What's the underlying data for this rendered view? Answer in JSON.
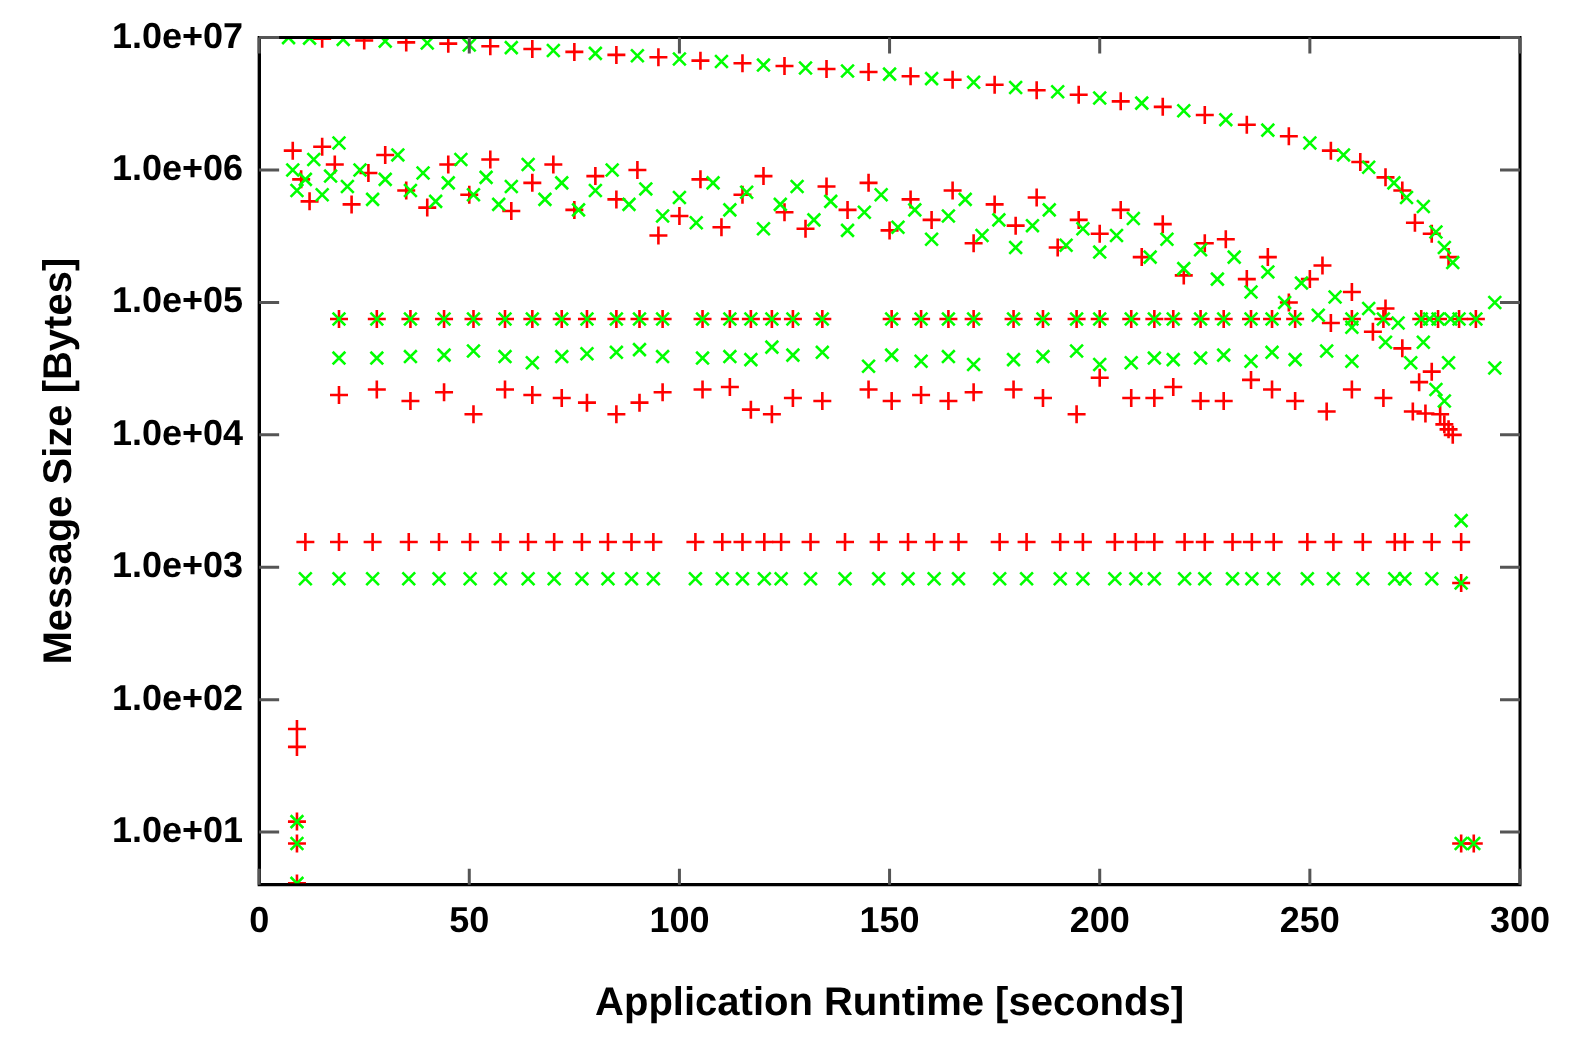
{
  "chart_data": {
    "type": "scatter",
    "xlabel": "Application Runtime [seconds]",
    "ylabel": "Message Size [Bytes]",
    "log": "y",
    "grid": false,
    "xlim": [
      0,
      300
    ],
    "xticks": [
      0,
      50,
      100,
      150,
      200,
      250,
      300
    ],
    "ylim": [
      4,
      10000000
    ],
    "yticks": [
      {
        "value": 10,
        "label": "1.0e+01"
      },
      {
        "value": 100,
        "label": "1.0e+02"
      },
      {
        "value": 1000,
        "label": "1.0e+03"
      },
      {
        "value": 10000,
        "label": "1.0e+04"
      },
      {
        "value": 100000,
        "label": "1.0e+05"
      },
      {
        "value": 1000000,
        "label": "1.0e+06"
      },
      {
        "value": 10000000,
        "label": "1.0e+07"
      }
    ],
    "series": [
      {
        "color": "#ff0000",
        "marker": "cross",
        "x": [
          15,
          25,
          35,
          45,
          55,
          65,
          75,
          85,
          95,
          105,
          115,
          125,
          135,
          145,
          155,
          165,
          175,
          185,
          195,
          205,
          215,
          225,
          235,
          245,
          255,
          262,
          268,
          272,
          275,
          279,
          283
        ],
        "values": [
          9800000,
          9500000,
          9200000,
          9000000,
          8600000,
          8200000,
          7800000,
          7400000,
          7100000,
          6700000,
          6400000,
          6100000,
          5800000,
          5500000,
          5100000,
          4800000,
          4400000,
          4000000,
          3700000,
          3300000,
          3000000,
          2600000,
          2200000,
          1800000,
          1400000,
          1150000,
          880000,
          700000,
          400000,
          330000,
          220000
        ]
      },
      {
        "color": "#ff0000",
        "marker": "cross",
        "x": [
          8,
          10,
          12,
          15,
          18,
          22,
          26,
          30,
          35,
          40,
          45,
          50,
          55,
          60,
          65,
          70,
          75,
          80,
          85,
          90,
          95,
          100,
          105,
          110,
          115,
          120,
          125,
          130,
          135,
          140,
          145,
          150,
          155,
          160,
          165,
          170,
          175,
          180,
          185,
          190,
          195,
          200,
          205,
          210,
          215,
          220,
          225,
          230,
          235,
          240,
          245,
          250,
          253,
          255,
          260,
          265,
          268,
          272,
          276,
          279,
          282
        ],
        "values": [
          1400000,
          850000,
          580000,
          1500000,
          1100000,
          550000,
          950000,
          1300000,
          700000,
          520000,
          1100000,
          650000,
          1200000,
          490000,
          800000,
          1100000,
          500000,
          900000,
          600000,
          1000000,
          320000,
          450000,
          850000,
          370000,
          650000,
          900000,
          480000,
          360000,
          750000,
          500000,
          800000,
          350000,
          600000,
          420000,
          700000,
          280000,
          550000,
          380000,
          620000,
          260000,
          420000,
          330000,
          500000,
          220000,
          390000,
          160000,
          280000,
          300000,
          150000,
          220000,
          100000,
          150000,
          190000,
          70000,
          120000,
          60000,
          90000,
          45000,
          25000,
          30000,
          12000
        ]
      },
      {
        "color": "#ff0000",
        "marker": "cross",
        "x": [
          19,
          28,
          36,
          44,
          51,
          58.5,
          65,
          72,
          78,
          85,
          90.5,
          96,
          105.5,
          112,
          117,
          122,
          127,
          134,
          150.5,
          157.5,
          164,
          170,
          179.5,
          186.5,
          194.5,
          200,
          207.5,
          213,
          217.5,
          224,
          229.5,
          236,
          241,
          246.5,
          260,
          267.5,
          276.5,
          280.5,
          285.5,
          289.5
        ],
        "values": [
          75000,
          75000,
          75000,
          75000,
          75000,
          75000,
          75000,
          75000,
          75000,
          75000,
          75000,
          75000,
          75000,
          75000,
          75000,
          75000,
          75000,
          75000,
          75000,
          75000,
          75000,
          75000,
          75000,
          75000,
          75000,
          75000,
          75000,
          75000,
          75000,
          75000,
          75000,
          75000,
          75000,
          75000,
          75000,
          75000,
          75000,
          75000,
          75000,
          75000
        ]
      },
      {
        "color": "#ff0000",
        "marker": "cross",
        "x": [
          19,
          28,
          36,
          44,
          51,
          58.5,
          65,
          72,
          78,
          85,
          90.5,
          96,
          105.5,
          112,
          117,
          122,
          127,
          134,
          145,
          150.5,
          157.5,
          164,
          170,
          179.5,
          186.5,
          194.5,
          200,
          207.5,
          213,
          217.5,
          224,
          229.5,
          236,
          241,
          246.5,
          254,
          260,
          267.5,
          274.5,
          277.5,
          281,
          283,
          284
        ],
        "values": [
          20000,
          22000,
          18000,
          21000,
          14300,
          22000,
          20000,
          19000,
          17500,
          14300,
          17500,
          21000,
          22000,
          23000,
          15500,
          14300,
          19000,
          18000,
          22000,
          18000,
          20000,
          18000,
          21000,
          22000,
          19000,
          14300,
          27000,
          19000,
          19000,
          23000,
          18000,
          18000,
          26000,
          22000,
          18000,
          15000,
          22000,
          19000,
          15000,
          14500,
          14300,
          11000,
          10000
        ]
      },
      {
        "color": "#ff0000",
        "marker": "cross",
        "x": [
          11,
          19,
          27,
          35.6,
          42.8,
          50.2,
          57.4,
          64,
          70.2,
          76.8,
          83,
          88.6,
          93.8,
          103.8,
          110.2,
          115,
          120.2,
          124.2,
          131.2,
          139.4,
          147.4,
          154.4,
          160.6,
          166.4,
          176.2,
          182.6,
          190.6,
          196,
          203.6,
          208.6,
          213,
          220.2,
          225,
          231.6,
          236.2,
          241.4,
          249.4,
          255.6,
          262.6,
          270.2,
          272.6,
          279,
          286
        ],
        "values": [
          1550,
          1550,
          1550,
          1550,
          1550,
          1550,
          1550,
          1550,
          1550,
          1550,
          1550,
          1550,
          1550,
          1550,
          1550,
          1550,
          1550,
          1550,
          1550,
          1550,
          1550,
          1550,
          1550,
          1550,
          1550,
          1550,
          1550,
          1550,
          1550,
          1550,
          1550,
          1550,
          1550,
          1550,
          1550,
          1550,
          1550,
          1550,
          1550,
          1550,
          1550,
          1550,
          1550
        ]
      },
      {
        "color": "#ff0000",
        "marker": "cross",
        "x": [
          9,
          9,
          9,
          9,
          9,
          286,
          286,
          289
        ],
        "values": [
          60,
          44,
          12,
          8.2,
          4.1,
          760,
          8.2,
          8.2
        ]
      },
      {
        "color": "#00ff00",
        "marker": "x",
        "x": [
          7,
          12,
          20,
          30,
          40,
          50,
          60,
          70,
          80,
          90,
          100,
          110,
          120,
          130,
          140,
          150,
          160,
          170,
          180,
          190,
          200,
          210,
          220,
          230,
          240,
          250,
          258,
          264,
          270,
          273,
          277,
          280,
          282,
          284
        ],
        "values": [
          10000000,
          9900000,
          9700000,
          9400000,
          9100000,
          8800000,
          8400000,
          8000000,
          7600000,
          7300000,
          6900000,
          6600000,
          6200000,
          5900000,
          5600000,
          5300000,
          4900000,
          4600000,
          4200000,
          3900000,
          3500000,
          3200000,
          2800000,
          2400000,
          2000000,
          1600000,
          1300000,
          1050000,
          800000,
          620000,
          530000,
          340000,
          260000,
          200000
        ]
      },
      {
        "color": "#00ff00",
        "marker": "x",
        "x": [
          8,
          9,
          11,
          13,
          15,
          17,
          19,
          21,
          24,
          27,
          30,
          33,
          36,
          39,
          42,
          45,
          48,
          51,
          54,
          57,
          60,
          64,
          68,
          72,
          76,
          80,
          84,
          88,
          92,
          96,
          100,
          104,
          108,
          112,
          116,
          120,
          124,
          128,
          132,
          136,
          140,
          144,
          148,
          152,
          156,
          160,
          164,
          168,
          172,
          176,
          180,
          184,
          188,
          192,
          196,
          200,
          204,
          208,
          212,
          216,
          220,
          224,
          228,
          232,
          236,
          240,
          244,
          248,
          252,
          256,
          260,
          264,
          268,
          271,
          274,
          277,
          280,
          282,
          283
        ],
        "values": [
          1000000,
          700000,
          850000,
          1200000,
          650000,
          900000,
          1600000,
          750000,
          1000000,
          600000,
          850000,
          1300000,
          700000,
          950000,
          580000,
          800000,
          1200000,
          650000,
          880000,
          550000,
          750000,
          1100000,
          600000,
          800000,
          500000,
          700000,
          1000000,
          550000,
          720000,
          450000,
          620000,
          400000,
          800000,
          500000,
          680000,
          360000,
          550000,
          750000,
          420000,
          580000,
          350000,
          480000,
          650000,
          370000,
          500000,
          300000,
          450000,
          600000,
          320000,
          420000,
          260000,
          380000,
          500000,
          270000,
          360000,
          240000,
          320000,
          430000,
          220000,
          300000,
          180000,
          250000,
          150000,
          220000,
          120000,
          170000,
          100000,
          140000,
          80000,
          110000,
          65000,
          90000,
          50000,
          70000,
          35000,
          50000,
          22000,
          18000,
          35000
        ]
      },
      {
        "color": "#00ff00",
        "marker": "x",
        "x": [
          19,
          28,
          36,
          44,
          51,
          58.5,
          65,
          72,
          78,
          85,
          90.5,
          96,
          105.5,
          112,
          117,
          122,
          127,
          134,
          150.5,
          157.5,
          164,
          170,
          179.5,
          186.5,
          194.5,
          200,
          207.5,
          213,
          217.5,
          224,
          229.5,
          236,
          241,
          246.5,
          260,
          267.5,
          276.5,
          278.5,
          280.5,
          283.5,
          285.5,
          289.5,
          294
        ],
        "values": [
          75000,
          75000,
          75000,
          75000,
          75000,
          75000,
          75000,
          75000,
          75000,
          75000,
          75000,
          75000,
          75000,
          75000,
          75000,
          75000,
          75000,
          75000,
          75000,
          75000,
          75000,
          75000,
          75000,
          75000,
          75000,
          75000,
          75000,
          75000,
          75000,
          75000,
          75000,
          75000,
          75000,
          75000,
          75000,
          75000,
          75000,
          75000,
          75000,
          75000,
          75000,
          75000,
          100000
        ]
      },
      {
        "color": "#00ff00",
        "marker": "x",
        "x": [
          19,
          28,
          36,
          44,
          51,
          58.5,
          65,
          72,
          78,
          85,
          90.5,
          96,
          105.5,
          112,
          117,
          122,
          127,
          134,
          145,
          150.5,
          157.5,
          164,
          170,
          179.5,
          186.5,
          194.5,
          200,
          207.5,
          213,
          217.5,
          224,
          229.5,
          236,
          241,
          246.5,
          254,
          260,
          294
        ],
        "values": [
          38000,
          38000,
          39000,
          40000,
          43000,
          39000,
          35000,
          39000,
          41000,
          42000,
          44000,
          39000,
          38000,
          39000,
          37000,
          46000,
          40000,
          42000,
          33000,
          40000,
          36000,
          39000,
          34000,
          37000,
          39000,
          43000,
          34000,
          35000,
          38000,
          37000,
          38000,
          40000,
          36000,
          42000,
          37000,
          43000,
          36000,
          32000
        ]
      },
      {
        "color": "#00ff00",
        "marker": "x",
        "x": [
          11,
          19,
          27,
          35.6,
          42.8,
          50.2,
          57.4,
          64,
          70.2,
          76.8,
          83,
          88.6,
          93.8,
          103.8,
          110.2,
          115,
          120.2,
          124.2,
          131.2,
          139.4,
          147.4,
          154.4,
          160.6,
          166.4,
          176.2,
          182.6,
          190.6,
          196,
          203.6,
          208.6,
          213,
          220.2,
          225,
          231.6,
          236.2,
          241.4,
          249.4,
          255.6,
          262.6,
          270.2,
          272.6,
          279,
          286
        ],
        "values": [
          820,
          820,
          820,
          820,
          820,
          820,
          820,
          820,
          820,
          820,
          820,
          820,
          820,
          820,
          820,
          820,
          820,
          820,
          820,
          820,
          820,
          820,
          820,
          820,
          820,
          820,
          820,
          820,
          820,
          820,
          820,
          820,
          820,
          820,
          820,
          820,
          820,
          820,
          820,
          820,
          820,
          820,
          2250
        ]
      },
      {
        "color": "#00ff00",
        "marker": "x",
        "x": [
          9,
          9,
          9,
          286,
          286,
          289
        ],
        "values": [
          12,
          8.2,
          4.1,
          760,
          8.2,
          8.2
        ]
      }
    ]
  }
}
